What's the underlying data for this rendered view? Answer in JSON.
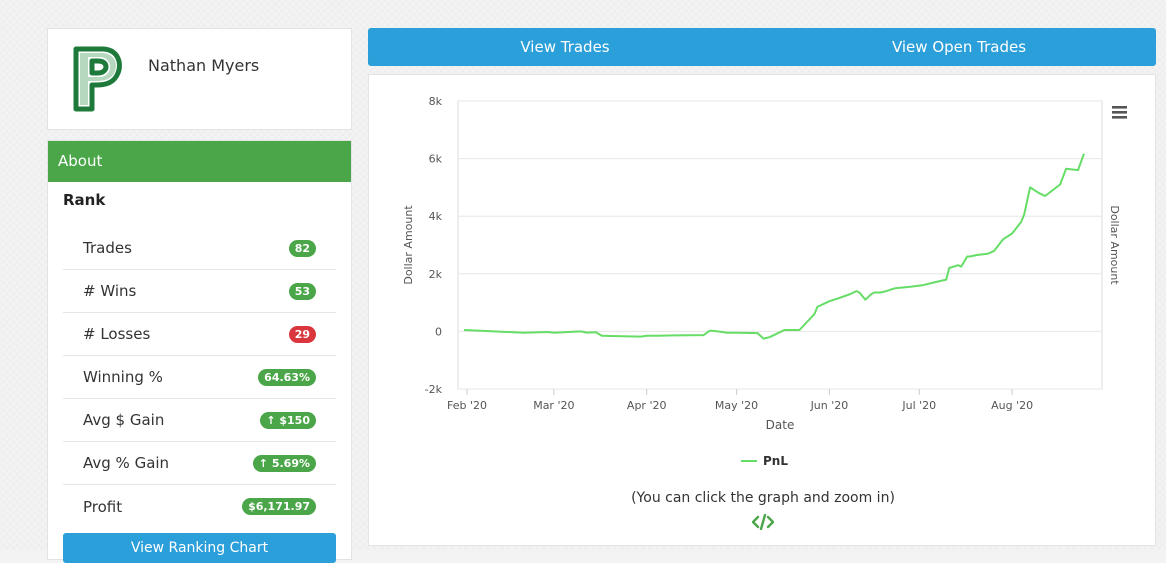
{
  "profile": {
    "name": "Nathan Myers",
    "logo_letter": "p"
  },
  "about": {
    "header": "About",
    "rank_title": "Rank",
    "stats": [
      {
        "label": "Trades",
        "value": "82",
        "badge": "green"
      },
      {
        "label": "# Wins",
        "value": "53",
        "badge": "green"
      },
      {
        "label": "# Losses",
        "value": "29",
        "badge": "red"
      },
      {
        "label": "Winning %",
        "value": "64.63%",
        "badge": "green"
      },
      {
        "label": "Avg $ Gain",
        "value": "↑ $150",
        "badge": "green"
      },
      {
        "label": "Avg % Gain",
        "value": "↑ 5.69%",
        "badge": "green"
      },
      {
        "label": "Profit",
        "value": "$6,171.97",
        "badge": "green"
      }
    ],
    "bottom_button": "View Ranking Chart"
  },
  "nav": {
    "view_trades": "View Trades",
    "view_open_trades": "View Open Trades"
  },
  "colors": {
    "green": "#4aa648",
    "blue": "#2b9fd9",
    "red": "#d9363e",
    "line": "#66dd66"
  },
  "chart_data": {
    "type": "line",
    "title": "",
    "xlabel": "Date",
    "ylabel": "Dollar Amount",
    "ylabel_right": "Dollar Amount",
    "ylim": [
      -2000,
      8000
    ],
    "yticks": [
      -2000,
      0,
      2000,
      4000,
      6000,
      8000
    ],
    "ytick_labels": [
      "-2k",
      "0",
      "2k",
      "4k",
      "6k",
      "8k"
    ],
    "xticks": [
      "2020-02-01",
      "2020-03-01",
      "2020-04-01",
      "2020-05-01",
      "2020-06-01",
      "2020-07-01",
      "2020-08-01"
    ],
    "xtick_labels": [
      "Feb '20",
      "Mar '20",
      "Apr '20",
      "May '20",
      "Jun '20",
      "Jul '20",
      "Aug '20"
    ],
    "xlim": [
      "2020-01-29",
      "2020-08-31"
    ],
    "grid": true,
    "legend_position": "bottom",
    "menu_icon": "hamburger-menu-icon",
    "hint": "(You can click the graph and zoom in)",
    "series": [
      {
        "name": "PnL",
        "x": [
          "2020-01-31",
          "2020-02-10",
          "2020-02-20",
          "2020-02-28",
          "2020-03-01",
          "2020-03-10",
          "2020-03-12",
          "2020-03-15",
          "2020-03-17",
          "2020-03-20",
          "2020-03-30",
          "2020-04-01",
          "2020-04-05",
          "2020-04-10",
          "2020-04-20",
          "2020-04-22",
          "2020-04-24",
          "2020-04-28",
          "2020-05-01",
          "2020-05-08",
          "2020-05-10",
          "2020-05-12",
          "2020-05-14",
          "2020-05-17",
          "2020-05-22",
          "2020-05-27",
          "2020-05-28",
          "2020-06-01",
          "2020-06-04",
          "2020-06-08",
          "2020-06-10",
          "2020-06-11",
          "2020-06-13",
          "2020-06-15",
          "2020-06-16",
          "2020-06-18",
          "2020-06-20",
          "2020-06-23",
          "2020-06-28",
          "2020-07-02",
          "2020-07-06",
          "2020-07-08",
          "2020-07-10",
          "2020-07-11",
          "2020-07-14",
          "2020-07-15",
          "2020-07-17",
          "2020-07-18",
          "2020-07-20",
          "2020-07-24",
          "2020-07-26",
          "2020-07-29",
          "2020-08-01",
          "2020-08-04",
          "2020-08-05",
          "2020-08-07",
          "2020-08-10",
          "2020-08-12",
          "2020-08-17",
          "2020-08-19",
          "2020-08-23",
          "2020-08-25"
        ],
        "y": [
          50,
          0,
          -50,
          -20,
          -50,
          0,
          -40,
          -30,
          -150,
          -160,
          -180,
          -150,
          -150,
          -140,
          -130,
          20,
          10,
          -50,
          -50,
          -60,
          -250,
          -200,
          -100,
          50,
          50,
          600,
          850,
          1050,
          1150,
          1300,
          1400,
          1350,
          1100,
          1300,
          1350,
          1350,
          1400,
          1500,
          1550,
          1600,
          1700,
          1750,
          1800,
          2200,
          2300,
          2250,
          2600,
          2600,
          2650,
          2700,
          2800,
          3200,
          3400,
          3800,
          4050,
          5000,
          4800,
          4700,
          5100,
          5650,
          5600,
          6171
        ]
      }
    ]
  }
}
